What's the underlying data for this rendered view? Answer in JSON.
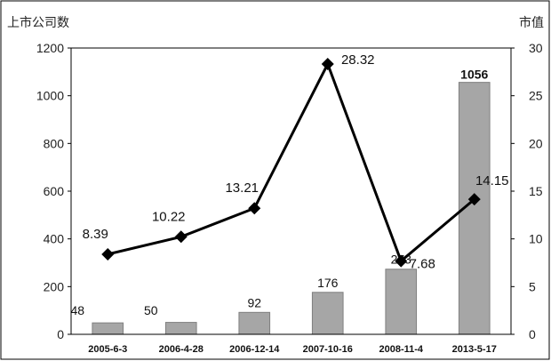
{
  "chart_data": {
    "type": "bar",
    "categories": [
      "2005-6-3",
      "2006-4-28",
      "2006-12-14",
      "2007-10-16",
      "2008-11-4",
      "2013-5-17"
    ],
    "series": [
      {
        "name": "",
        "type": "bar",
        "axis": "left",
        "values": [
          48,
          50,
          92,
          176,
          273,
          1056
        ],
        "labels": [
          "48",
          "50",
          "92",
          "176",
          "273",
          "1056"
        ]
      },
      {
        "name": "",
        "type": "line",
        "axis": "right",
        "values": [
          8.39,
          10.22,
          13.21,
          28.32,
          7.68,
          14.15
        ],
        "labels": [
          "8.39",
          "10.22",
          "13.21",
          "28.32",
          "7.68",
          "14.15"
        ]
      }
    ],
    "ylabel": "上市公司数",
    "y2label": "市值",
    "ylim": [
      0,
      1200
    ],
    "y2lim": [
      0,
      30
    ],
    "yticks": [
      "0",
      "200",
      "400",
      "600",
      "800",
      "1000",
      "1200"
    ],
    "y2ticks": [
      "0",
      "5",
      "10",
      "15",
      "20",
      "25",
      "30"
    ],
    "grid": false,
    "colors": {
      "bar": "#a6a6a6",
      "bar_stroke": "#7f7f7f",
      "line": "#000000",
      "frame": "#000000"
    }
  }
}
